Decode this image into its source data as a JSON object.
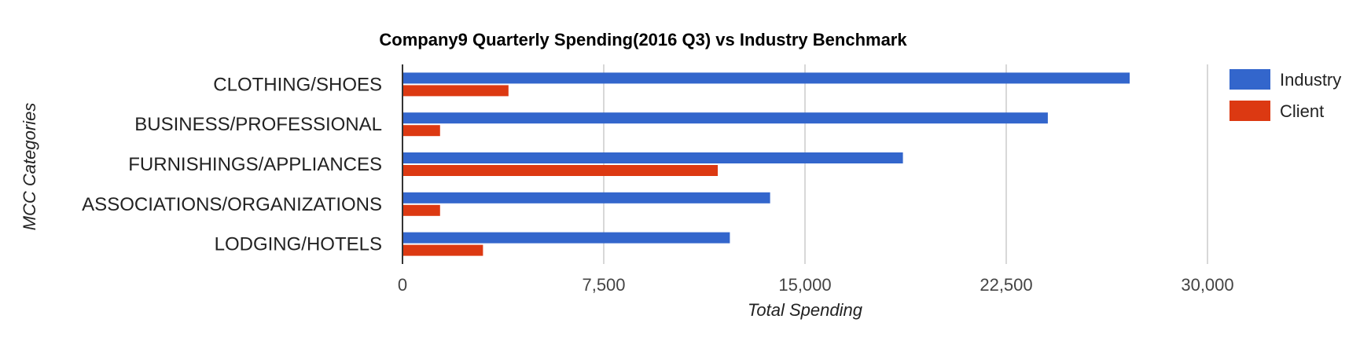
{
  "chart_data": {
    "type": "bar",
    "orientation": "horizontal",
    "title": "Company9 Quarterly Spending(2016 Q3) vs Industry Benchmark",
    "xlabel": "Total Spending",
    "ylabel": "MCC Categories",
    "categories": [
      "CLOTHING/SHOES",
      "BUSINESS/PROFESSIONAL",
      "FURNISHINGS/APPLIANCES",
      "ASSOCIATIONS/ORGANIZATIONS",
      "LODGING/HOTELS"
    ],
    "series": [
      {
        "name": "Industry",
        "color": "#3366cc",
        "values": [
          27100,
          24050,
          18650,
          13700,
          12200
        ]
      },
      {
        "name": "Client",
        "color": "#dc3912",
        "values": [
          3950,
          1400,
          11750,
          1400,
          3000
        ]
      }
    ],
    "xlim": [
      0,
      35000
    ],
    "xticks": [
      0,
      7500,
      15000,
      22500,
      30000
    ],
    "xtick_labels": [
      "0",
      "7,500",
      "15,000",
      "22,500",
      "30,000"
    ],
    "grid": true,
    "legend_position": "right"
  }
}
